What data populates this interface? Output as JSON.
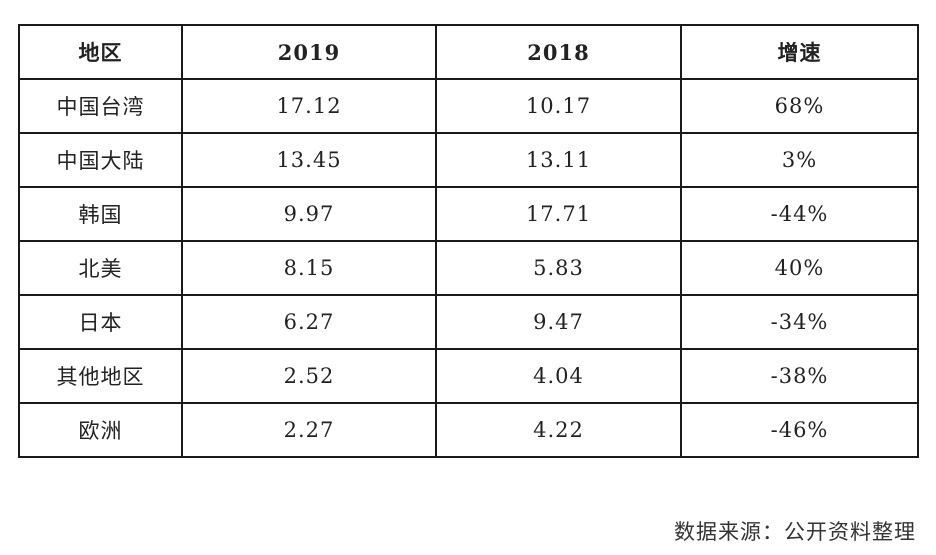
{
  "table": {
    "headers": [
      "地区",
      "2019",
      "2018",
      "增速"
    ],
    "rows": [
      [
        "中国台湾",
        "17.12",
        "10.17",
        "68%"
      ],
      [
        "中国大陆",
        "13.45",
        "13.11",
        "3%"
      ],
      [
        "韩国",
        "9.97",
        "17.71",
        "-44%"
      ],
      [
        "北美",
        "8.15",
        "5.83",
        "40%"
      ],
      [
        "日本",
        "6.27",
        "9.47",
        "-34%"
      ],
      [
        "其他地区",
        "2.52",
        "4.04",
        "-38%"
      ],
      [
        "欧洲",
        "2.27",
        "4.22",
        "-46%"
      ]
    ]
  },
  "source_note": "数据来源：公开资料整理"
}
